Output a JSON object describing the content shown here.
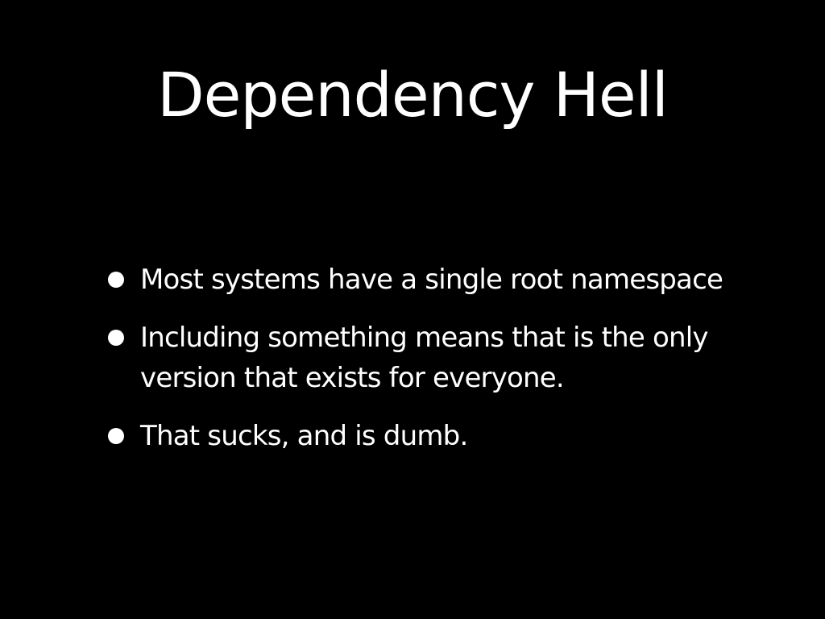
{
  "slide": {
    "title": "Dependency Hell",
    "bullets": [
      {
        "text": "Most systems have a single root namespace"
      },
      {
        "text": "Including something means that is the only version that exists for everyone."
      },
      {
        "text": "That sucks, and is dumb."
      }
    ]
  },
  "colors": {
    "background": "#000000",
    "text": "#ffffff"
  }
}
